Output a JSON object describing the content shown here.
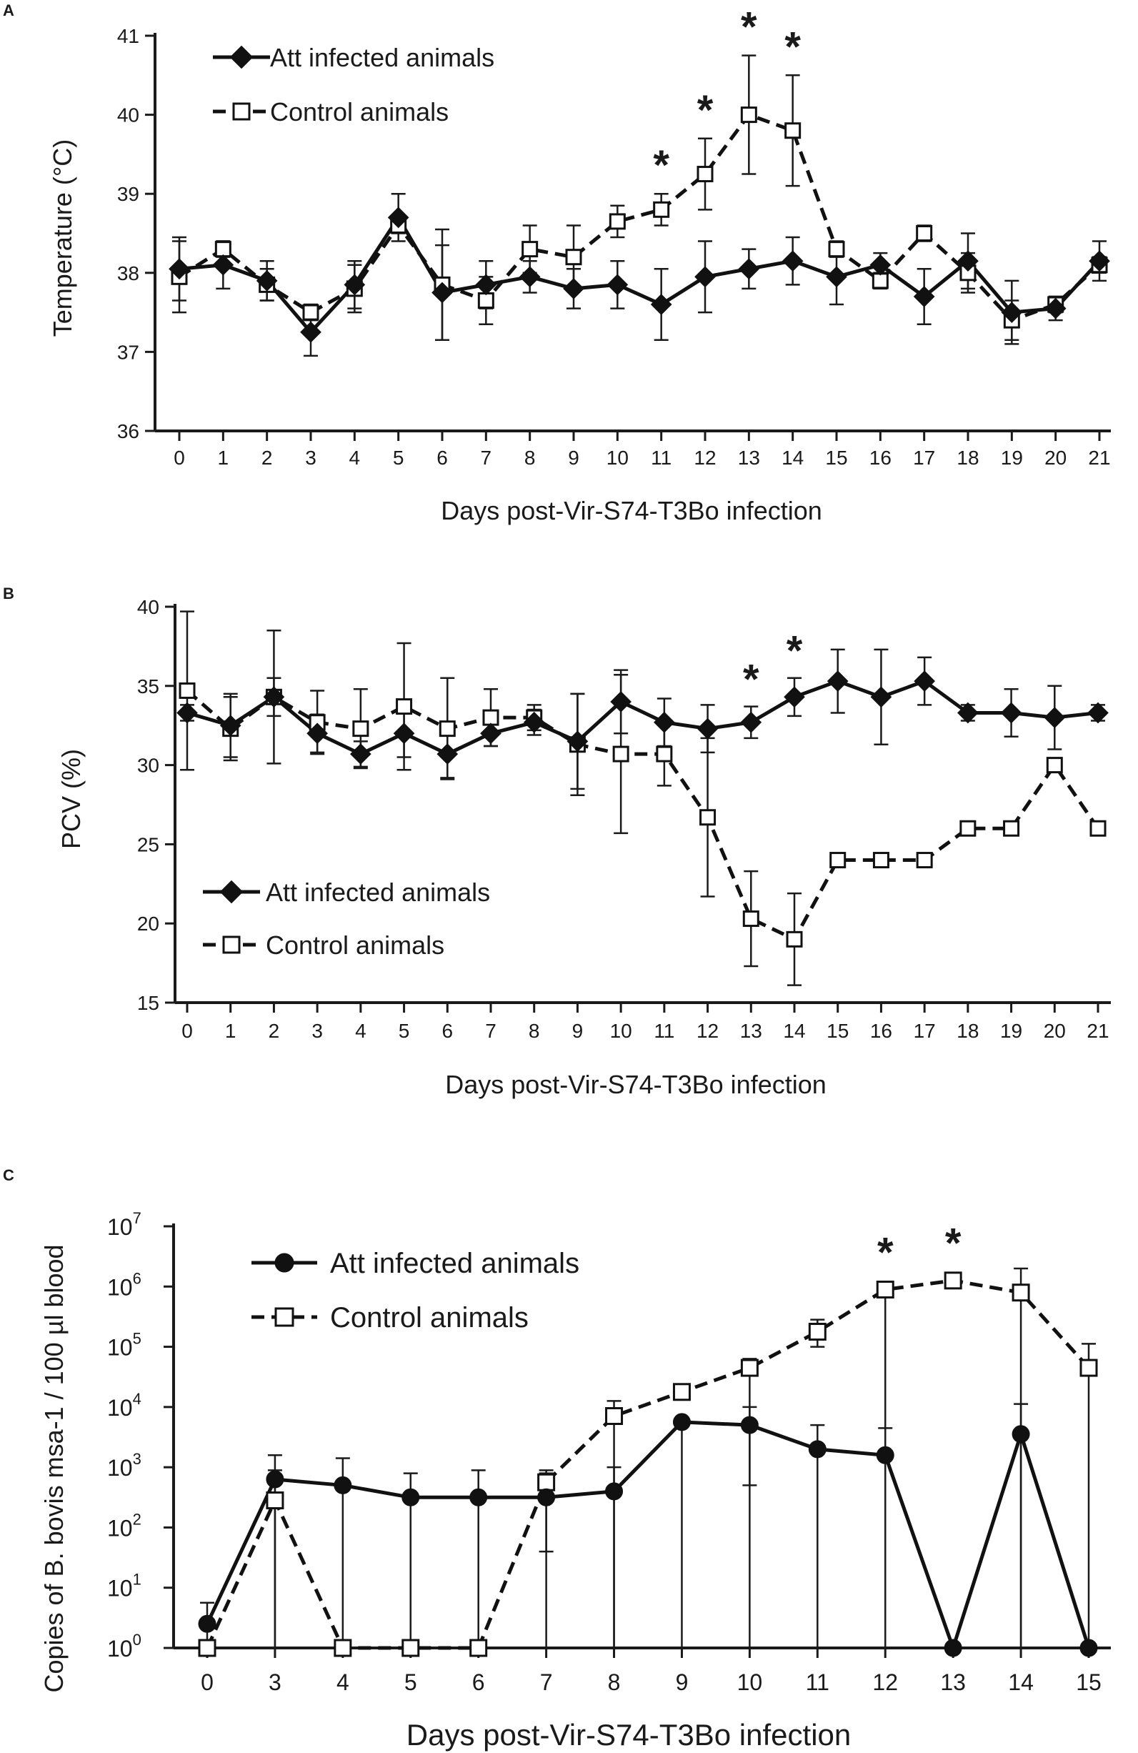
{
  "chart_data": [
    {
      "panel": "A",
      "type": "line",
      "title": "",
      "xlabel": "Days post-Vir-S74-T3Bo infection",
      "ylabel": "Temperature (°C)",
      "ylim": [
        36,
        41
      ],
      "yticks": [
        "36",
        "37",
        "38",
        "39",
        "40",
        "41"
      ],
      "categories": [
        "0",
        "1",
        "2",
        "3",
        "4",
        "5",
        "6",
        "7",
        "8",
        "9",
        "10",
        "11",
        "12",
        "13",
        "14",
        "15",
        "16",
        "17",
        "18",
        "19",
        "20",
        "21"
      ],
      "series": [
        {
          "name": "Att infected animals",
          "values": [
            38.05,
            38.1,
            37.9,
            37.25,
            37.85,
            38.7,
            37.75,
            37.85,
            37.95,
            37.8,
            37.85,
            37.6,
            37.95,
            38.05,
            38.15,
            37.95,
            38.1,
            37.7,
            38.15,
            37.5,
            37.55,
            38.15
          ],
          "errors": [
            0.4,
            0.3,
            0.25,
            0.3,
            0.3,
            0.3,
            0.6,
            0.3,
            0.2,
            0.25,
            0.3,
            0.45,
            0.45,
            0.25,
            0.3,
            0.35,
            0.15,
            0.35,
            0.35,
            0.4,
            0.15,
            0.25
          ]
        },
        {
          "name": "Control animals",
          "values": [
            37.95,
            38.3,
            37.85,
            37.5,
            37.8,
            38.6,
            37.85,
            37.65,
            38.3,
            38.2,
            38.65,
            38.8,
            39.25,
            40.0,
            39.8,
            38.3,
            37.9,
            38.5,
            38.0,
            37.4,
            37.6,
            38.1
          ],
          "errors": [
            0.45,
            0.1,
            0.2,
            0.1,
            0.3,
            0.1,
            0.7,
            0.3,
            0.3,
            0.4,
            0.2,
            0.2,
            0.45,
            0.75,
            0.7,
            0.1,
            0.1,
            0.1,
            0.25,
            0.25,
            0.1,
            0.1
          ]
        }
      ],
      "significance_marker": "*",
      "significant_days": [
        "11",
        "12",
        "13",
        "14"
      ],
      "legend_position": "top-left"
    },
    {
      "panel": "B",
      "type": "line",
      "title": "",
      "xlabel": "Days post-Vir-S74-T3Bo infection",
      "ylabel": "PCV (%)",
      "ylim": [
        15,
        40
      ],
      "yticks": [
        "15",
        "20",
        "25",
        "30",
        "35",
        "40"
      ],
      "categories": [
        "0",
        "1",
        "2",
        "3",
        "4",
        "5",
        "6",
        "7",
        "8",
        "9",
        "10",
        "11",
        "12",
        "13",
        "14",
        "15",
        "16",
        "17",
        "18",
        "19",
        "20",
        "21"
      ],
      "series": [
        {
          "name": "Att infected animals",
          "values": [
            33.3,
            32.5,
            34.3,
            32.0,
            30.7,
            32.0,
            30.7,
            32.0,
            32.7,
            31.5,
            34.0,
            32.7,
            32.3,
            32.7,
            34.3,
            35.3,
            34.3,
            35.3,
            33.3,
            33.3,
            33.0,
            33.3
          ],
          "errors": [
            0.5,
            2.0,
            1.2,
            1.2,
            0.8,
            1.5,
            1.5,
            0.8,
            0.8,
            3.0,
            2.0,
            1.5,
            1.5,
            1.0,
            1.2,
            2.0,
            3.0,
            1.5,
            0.5,
            1.5,
            2.0,
            0.5
          ]
        },
        {
          "name": "Control animals",
          "values": [
            34.7,
            32.3,
            34.3,
            32.7,
            32.3,
            33.7,
            32.3,
            33.0,
            33.0,
            31.3,
            30.7,
            30.7,
            26.7,
            20.3,
            19.0,
            24.0,
            24.0,
            24.0,
            26.0,
            26.0,
            30.0,
            26.0
          ],
          "errors": [
            5.0,
            2.0,
            4.2,
            2.0,
            2.5,
            4.0,
            3.2,
            1.8,
            0.8,
            3.2,
            5.0,
            2.0,
            5.0,
            3.0,
            2.9,
            0,
            0,
            0,
            0,
            0,
            0,
            0
          ]
        }
      ],
      "significance_marker": "*",
      "significant_days": [
        "13",
        "14"
      ],
      "legend_position": "bottom-left"
    },
    {
      "panel": "C",
      "type": "line",
      "title": "",
      "xlabel": "Days post-Vir-S74-T3Bo infection",
      "ylabel": "Copies of B. bovis msa-1 / 100 µl blood",
      "yscale": "log10",
      "ylim_log10": [
        0,
        7
      ],
      "yticks": [
        {
          "base": "10",
          "exp": "0"
        },
        {
          "base": "10",
          "exp": "1"
        },
        {
          "base": "10",
          "exp": "2"
        },
        {
          "base": "10",
          "exp": "3"
        },
        {
          "base": "10",
          "exp": "4"
        },
        {
          "base": "10",
          "exp": "5"
        },
        {
          "base": "10",
          "exp": "6"
        },
        {
          "base": "10",
          "exp": "7"
        }
      ],
      "categories": [
        "0",
        "3",
        "4",
        "5",
        "6",
        "7",
        "8",
        "9",
        "10",
        "11",
        "12",
        "13",
        "14",
        "15"
      ],
      "series": [
        {
          "name": "Att infected animals",
          "log10_values": [
            0.4,
            2.8,
            2.7,
            2.5,
            2.5,
            2.5,
            2.6,
            3.75,
            3.7,
            3.3,
            3.2,
            0,
            3.55,
            0
          ],
          "log10_err_low": [
            0.4,
            2.8,
            2.7,
            2.5,
            2.5,
            2.5,
            2.6,
            3.75,
            1.0,
            3.3,
            3.2,
            0,
            3.55,
            0
          ],
          "log10_err_high": [
            0.35,
            0.4,
            0.45,
            0.4,
            0.45,
            0.4,
            0.4,
            0,
            0.3,
            0.4,
            0.45,
            0,
            0.5,
            0
          ]
        },
        {
          "name": "Control animals",
          "log10_values": [
            0,
            2.45,
            0,
            0,
            0,
            2.75,
            3.85,
            4.25,
            4.65,
            5.25,
            5.95,
            6.1,
            5.9,
            4.65
          ],
          "log10_err_low": [
            0,
            2.45,
            0,
            0,
            0,
            1.15,
            3.85,
            0,
            4.65,
            0.25,
            5.95,
            0.1,
            5.9,
            4.65
          ],
          "log10_err_high": [
            0,
            0.5,
            0,
            0,
            0,
            0.2,
            0.25,
            0,
            0.15,
            0.2,
            0.05,
            0.05,
            0.4,
            0.4
          ]
        }
      ],
      "significance_marker": "*",
      "significant_days": [
        "12",
        "13"
      ],
      "legend_position": "top-left"
    }
  ],
  "panels": {
    "a": {
      "letter": "A",
      "xlabel": "Days post-Vir-S74-T3Bo infection",
      "ylabel": "Temperature (°C)",
      "legend_att": "Att infected animals",
      "legend_ctl": "Control animals"
    },
    "b": {
      "letter": "B",
      "xlabel": "Days post-Vir-S74-T3Bo infection",
      "ylabel": "PCV (%)",
      "legend_att": "Att infected animals",
      "legend_ctl": "Control animals"
    },
    "c": {
      "letter": "C",
      "xlabel": "Days post-Vir-S74-T3Bo infection",
      "ylabel": "Copies of B. bovis msa-1 / 100 µl blood",
      "legend_att": "Att infected animals",
      "legend_ctl": "Control animals"
    }
  }
}
